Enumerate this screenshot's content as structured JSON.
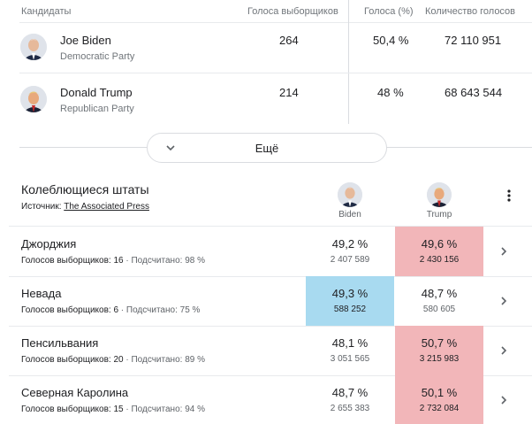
{
  "header": {
    "candidates": "Кандидаты",
    "electoral_votes": "Голоса выборщиков",
    "vote_share": "Голоса (%)",
    "vote_count": "Количество голосов"
  },
  "candidates": [
    {
      "name": "Joe Biden",
      "party": "Democratic Party",
      "electoral": "264",
      "share": "50,4 %",
      "votes": "72 110 951",
      "avatar_icon": "biden-avatar-icon"
    },
    {
      "name": "Donald Trump",
      "party": "Republican Party",
      "electoral": "214",
      "share": "48 %",
      "votes": "68 643 544",
      "avatar_icon": "trump-avatar-icon"
    }
  ],
  "more_button": {
    "label": "Ещё",
    "icon": "chevron-down-icon"
  },
  "swing": {
    "title": "Колеблющиеся штаты",
    "source_label": "Источник:",
    "source_link": "The Associated Press",
    "col_biden": "Biden",
    "col_trump": "Trump",
    "menu_icon": "more-vert-icon",
    "electoral_label": "Голосов выборщиков:",
    "counted_label": "Подсчитано:",
    "states": [
      {
        "name": "Джорджия",
        "electoral": "16",
        "counted": "98 %",
        "biden_pct": "49,2 %",
        "biden_votes": "2 407 589",
        "trump_pct": "49,6 %",
        "trump_votes": "2 430 156",
        "leader": "trump"
      },
      {
        "name": "Невада",
        "electoral": "6",
        "counted": "75 %",
        "biden_pct": "49,3 %",
        "biden_votes": "588 252",
        "trump_pct": "48,7 %",
        "trump_votes": "580 605",
        "leader": "biden"
      },
      {
        "name": "Пенсильвания",
        "electoral": "20",
        "counted": "89 %",
        "biden_pct": "48,1 %",
        "biden_votes": "3 051 565",
        "trump_pct": "50,7 %",
        "trump_votes": "3 215 983",
        "leader": "trump"
      },
      {
        "name": "Северная Каролина",
        "electoral": "15",
        "counted": "94 %",
        "biden_pct": "48,7 %",
        "biden_votes": "2 655 383",
        "trump_pct": "50,1 %",
        "trump_votes": "2 732 084",
        "leader": "trump"
      }
    ]
  },
  "colors": {
    "trump_lead": "#f2b6b9",
    "biden_lead": "#a8daf0",
    "divider": "#e8eaed"
  }
}
